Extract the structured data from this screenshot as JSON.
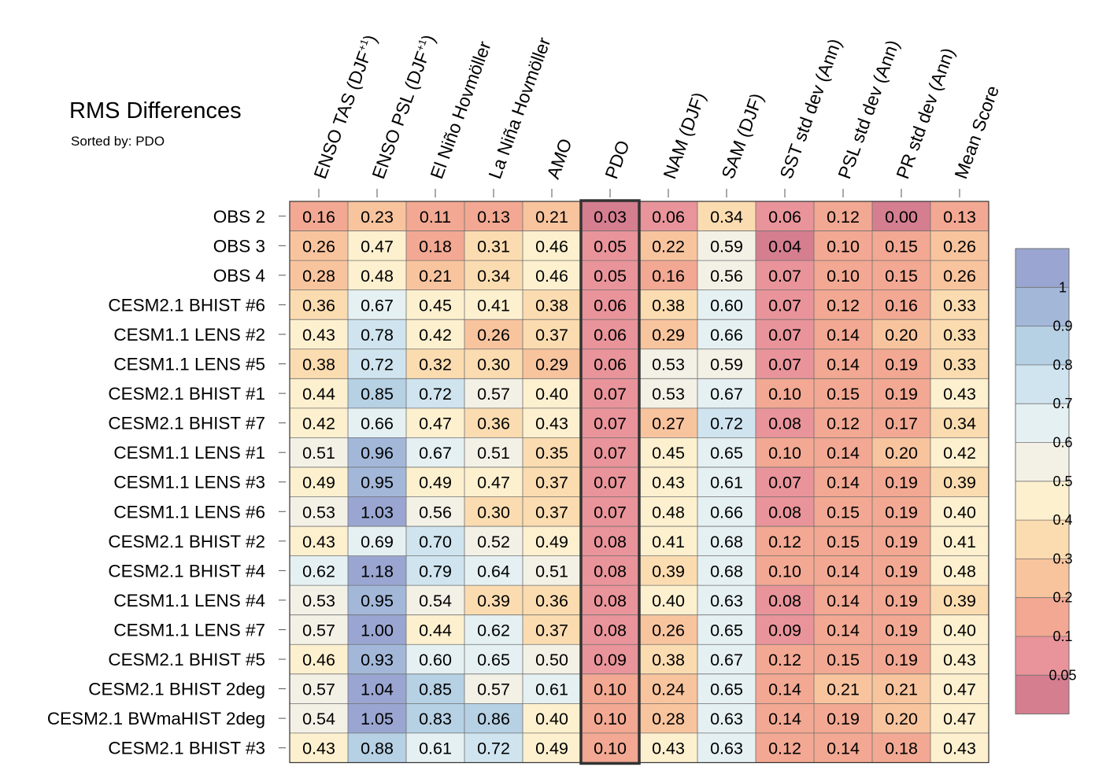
{
  "chart_data": {
    "type": "heatmap",
    "title": "RMS Differences",
    "subtitle": "Sorted by: PDO",
    "columns": [
      "ENSO TAS (DJF+1)",
      "ENSO PSL (DJF+1)",
      "El Niño Hovmöller",
      "La Niña Hovmöller",
      "AMO",
      "PDO",
      "NAM (DJF)",
      "SAM (DJF)",
      "SST std dev (Ann)",
      "PSL std dev (Ann)",
      "PR std dev (Ann)",
      "Mean Score"
    ],
    "highlighted_column": "PDO",
    "rows": [
      {
        "label": "OBS 2",
        "values": [
          "0.16",
          "0.23",
          "0.11",
          "0.13",
          "0.21",
          "0.03",
          "0.06",
          "0.34",
          "0.06",
          "0.12",
          "0.00",
          "0.13"
        ]
      },
      {
        "label": "OBS 3",
        "values": [
          "0.26",
          "0.47",
          "0.18",
          "0.31",
          "0.46",
          "0.05",
          "0.22",
          "0.59",
          "0.04",
          "0.10",
          "0.15",
          "0.26"
        ]
      },
      {
        "label": "OBS 4",
        "values": [
          "0.28",
          "0.48",
          "0.21",
          "0.34",
          "0.46",
          "0.05",
          "0.16",
          "0.56",
          "0.07",
          "0.10",
          "0.15",
          "0.26"
        ]
      },
      {
        "label": "CESM2.1 BHIST #6",
        "values": [
          "0.36",
          "0.67",
          "0.45",
          "0.41",
          "0.38",
          "0.06",
          "0.38",
          "0.60",
          "0.07",
          "0.12",
          "0.16",
          "0.33"
        ]
      },
      {
        "label": "CESM1.1 LENS #2",
        "values": [
          "0.43",
          "0.78",
          "0.42",
          "0.26",
          "0.37",
          "0.06",
          "0.29",
          "0.66",
          "0.07",
          "0.14",
          "0.20",
          "0.33"
        ]
      },
      {
        "label": "CESM1.1 LENS #5",
        "values": [
          "0.38",
          "0.72",
          "0.32",
          "0.30",
          "0.29",
          "0.06",
          "0.53",
          "0.59",
          "0.07",
          "0.14",
          "0.19",
          "0.33"
        ]
      },
      {
        "label": "CESM2.1 BHIST #1",
        "values": [
          "0.44",
          "0.85",
          "0.72",
          "0.57",
          "0.40",
          "0.07",
          "0.53",
          "0.67",
          "0.10",
          "0.15",
          "0.19",
          "0.43"
        ]
      },
      {
        "label": "CESM2.1 BHIST #7",
        "values": [
          "0.42",
          "0.66",
          "0.47",
          "0.36",
          "0.43",
          "0.07",
          "0.27",
          "0.72",
          "0.08",
          "0.12",
          "0.17",
          "0.34"
        ]
      },
      {
        "label": "CESM1.1 LENS #1",
        "values": [
          "0.51",
          "0.96",
          "0.67",
          "0.51",
          "0.35",
          "0.07",
          "0.45",
          "0.65",
          "0.10",
          "0.14",
          "0.20",
          "0.42"
        ]
      },
      {
        "label": "CESM1.1 LENS #3",
        "values": [
          "0.49",
          "0.95",
          "0.49",
          "0.47",
          "0.37",
          "0.07",
          "0.43",
          "0.61",
          "0.07",
          "0.14",
          "0.19",
          "0.39"
        ]
      },
      {
        "label": "CESM1.1 LENS #6",
        "values": [
          "0.53",
          "1.03",
          "0.56",
          "0.30",
          "0.37",
          "0.07",
          "0.48",
          "0.66",
          "0.08",
          "0.15",
          "0.19",
          "0.40"
        ]
      },
      {
        "label": "CESM2.1 BHIST #2",
        "values": [
          "0.43",
          "0.69",
          "0.70",
          "0.52",
          "0.49",
          "0.08",
          "0.41",
          "0.68",
          "0.12",
          "0.15",
          "0.19",
          "0.41"
        ]
      },
      {
        "label": "CESM2.1 BHIST #4",
        "values": [
          "0.62",
          "1.18",
          "0.79",
          "0.64",
          "0.51",
          "0.08",
          "0.39",
          "0.68",
          "0.10",
          "0.14",
          "0.19",
          "0.48"
        ]
      },
      {
        "label": "CESM1.1 LENS #4",
        "values": [
          "0.53",
          "0.95",
          "0.54",
          "0.39",
          "0.36",
          "0.08",
          "0.40",
          "0.63",
          "0.08",
          "0.14",
          "0.19",
          "0.39"
        ]
      },
      {
        "label": "CESM1.1 LENS #7",
        "values": [
          "0.57",
          "1.00",
          "0.44",
          "0.62",
          "0.37",
          "0.08",
          "0.26",
          "0.65",
          "0.09",
          "0.14",
          "0.19",
          "0.40"
        ]
      },
      {
        "label": "CESM2.1 BHIST #5",
        "values": [
          "0.46",
          "0.93",
          "0.60",
          "0.65",
          "0.50",
          "0.09",
          "0.38",
          "0.67",
          "0.12",
          "0.15",
          "0.19",
          "0.43"
        ]
      },
      {
        "label": "CESM2.1 BHIST 2deg",
        "values": [
          "0.57",
          "1.04",
          "0.85",
          "0.57",
          "0.61",
          "0.10",
          "0.24",
          "0.65",
          "0.14",
          "0.21",
          "0.21",
          "0.47"
        ]
      },
      {
        "label": "CESM2.1 BWmaHIST 2deg",
        "values": [
          "0.54",
          "1.05",
          "0.83",
          "0.86",
          "0.40",
          "0.10",
          "0.28",
          "0.63",
          "0.14",
          "0.19",
          "0.20",
          "0.47"
        ]
      },
      {
        "label": "CESM2.1 BHIST #3",
        "values": [
          "0.43",
          "0.88",
          "0.61",
          "0.72",
          "0.49",
          "0.10",
          "0.43",
          "0.63",
          "0.12",
          "0.14",
          "0.18",
          "0.43"
        ]
      }
    ],
    "colorbar": {
      "labels": [
        "1",
        "0.9",
        "0.8",
        "0.7",
        "0.6",
        "0.5",
        "0.4",
        "0.3",
        "0.2",
        "0.1",
        "0.05"
      ],
      "levels": [
        0.05,
        0.1,
        0.2,
        0.3,
        0.4,
        0.5,
        0.6,
        0.7,
        0.8,
        0.9,
        1.0
      ],
      "colors": [
        "#d47e90",
        "#e8949a",
        "#f2a892",
        "#f8c49e",
        "#fbdcb0",
        "#fdf0cf",
        "#f3f1e6",
        "#e5f0f2",
        "#cfe4ef",
        "#b6d0e4",
        "#a3b8d9",
        "#9aa6d1"
      ]
    }
  }
}
